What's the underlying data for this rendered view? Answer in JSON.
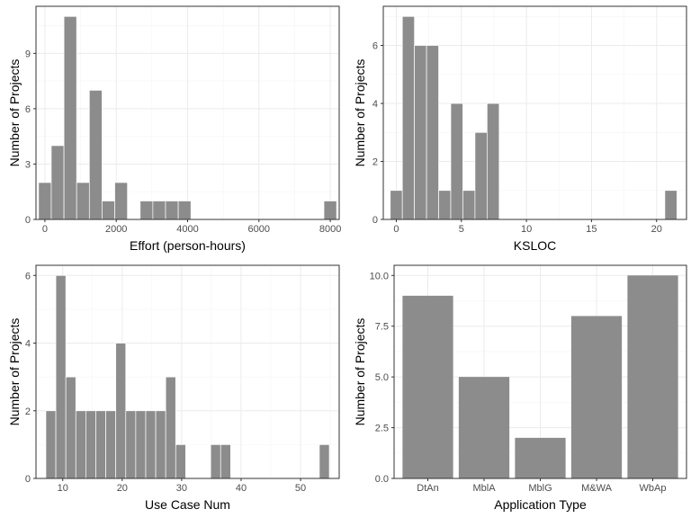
{
  "chart_data": [
    {
      "type": "bar",
      "xlabel": "Effort (person-hours)",
      "ylabel": "Number of Projects",
      "xlim": [
        -250,
        8250
      ],
      "ylim": [
        0,
        11.55
      ],
      "xticks": [
        0,
        2000,
        4000,
        6000,
        8000
      ],
      "yticks": [
        0,
        3,
        6,
        9
      ],
      "xticklabels": [
        "0",
        "2000",
        "4000",
        "6000",
        "8000"
      ],
      "yticklabels": [
        "0",
        "3",
        "6",
        "9"
      ],
      "bin_width": 356,
      "bins": [
        {
          "x": 0,
          "y": 2
        },
        {
          "x": 356,
          "y": 4
        },
        {
          "x": 712,
          "y": 11
        },
        {
          "x": 1068,
          "y": 2
        },
        {
          "x": 1424,
          "y": 7
        },
        {
          "x": 1780,
          "y": 1
        },
        {
          "x": 2136,
          "y": 2
        },
        {
          "x": 2848,
          "y": 1
        },
        {
          "x": 3204,
          "y": 1
        },
        {
          "x": 3560,
          "y": 1
        },
        {
          "x": 3916,
          "y": 1
        },
        {
          "x": 8000,
          "y": 1
        }
      ],
      "grid": true
    },
    {
      "type": "bar",
      "xlabel": "KSLOC",
      "ylabel": "Number of Projects",
      "xlim": [
        -1.0,
        22.3
      ],
      "ylim": [
        0,
        7.35
      ],
      "xticks": [
        0,
        5,
        10,
        15,
        20
      ],
      "yticks": [
        0,
        2,
        4,
        6
      ],
      "xticklabels": [
        "0",
        "5",
        "10",
        "15",
        "20"
      ],
      "yticklabels": [
        "0",
        "2",
        "4",
        "6"
      ],
      "bin_width": 0.93,
      "bins": [
        {
          "x": 0.0,
          "y": 1
        },
        {
          "x": 0.93,
          "y": 7
        },
        {
          "x": 1.86,
          "y": 6
        },
        {
          "x": 2.79,
          "y": 6
        },
        {
          "x": 3.72,
          "y": 1
        },
        {
          "x": 4.65,
          "y": 4
        },
        {
          "x": 5.58,
          "y": 1
        },
        {
          "x": 6.51,
          "y": 3
        },
        {
          "x": 7.44,
          "y": 4
        },
        {
          "x": 21.1,
          "y": 1
        }
      ],
      "grid": true
    },
    {
      "type": "bar",
      "xlabel": "Use Case Num",
      "ylabel": "Number of Projects",
      "xlim": [
        5.5,
        56.5
      ],
      "ylim": [
        0,
        6.3
      ],
      "xticks": [
        10,
        20,
        30,
        40,
        50
      ],
      "yticks": [
        0,
        2,
        4,
        6
      ],
      "xticklabels": [
        "10",
        "20",
        "30",
        "40",
        "50"
      ],
      "yticklabels": [
        "0",
        "2",
        "4",
        "6"
      ],
      "bin_width": 1.68,
      "bins": [
        {
          "x": 8.0,
          "y": 2
        },
        {
          "x": 9.68,
          "y": 6
        },
        {
          "x": 11.36,
          "y": 3
        },
        {
          "x": 13.04,
          "y": 2
        },
        {
          "x": 14.72,
          "y": 2
        },
        {
          "x": 16.4,
          "y": 2
        },
        {
          "x": 18.08,
          "y": 2
        },
        {
          "x": 19.76,
          "y": 4
        },
        {
          "x": 21.44,
          "y": 2
        },
        {
          "x": 23.12,
          "y": 2
        },
        {
          "x": 24.8,
          "y": 2
        },
        {
          "x": 26.48,
          "y": 2
        },
        {
          "x": 28.16,
          "y": 3
        },
        {
          "x": 29.84,
          "y": 1
        },
        {
          "x": 35.72,
          "y": 1
        },
        {
          "x": 37.4,
          "y": 1
        },
        {
          "x": 54.0,
          "y": 1
        }
      ],
      "grid": true
    },
    {
      "type": "bar",
      "xlabel": "Application Type",
      "ylabel": "Number of Projects",
      "categories": [
        "DtAn",
        "MblA",
        "MblG",
        "M&WA",
        "WbAp"
      ],
      "values": [
        9,
        5,
        2,
        8,
        10
      ],
      "ylim": [
        0,
        10.5
      ],
      "yticks": [
        0,
        2.5,
        5,
        7.5,
        10
      ],
      "yticklabels": [
        "0.0",
        "2.5",
        "5.0",
        "7.5",
        "10.0"
      ],
      "grid": true
    }
  ]
}
